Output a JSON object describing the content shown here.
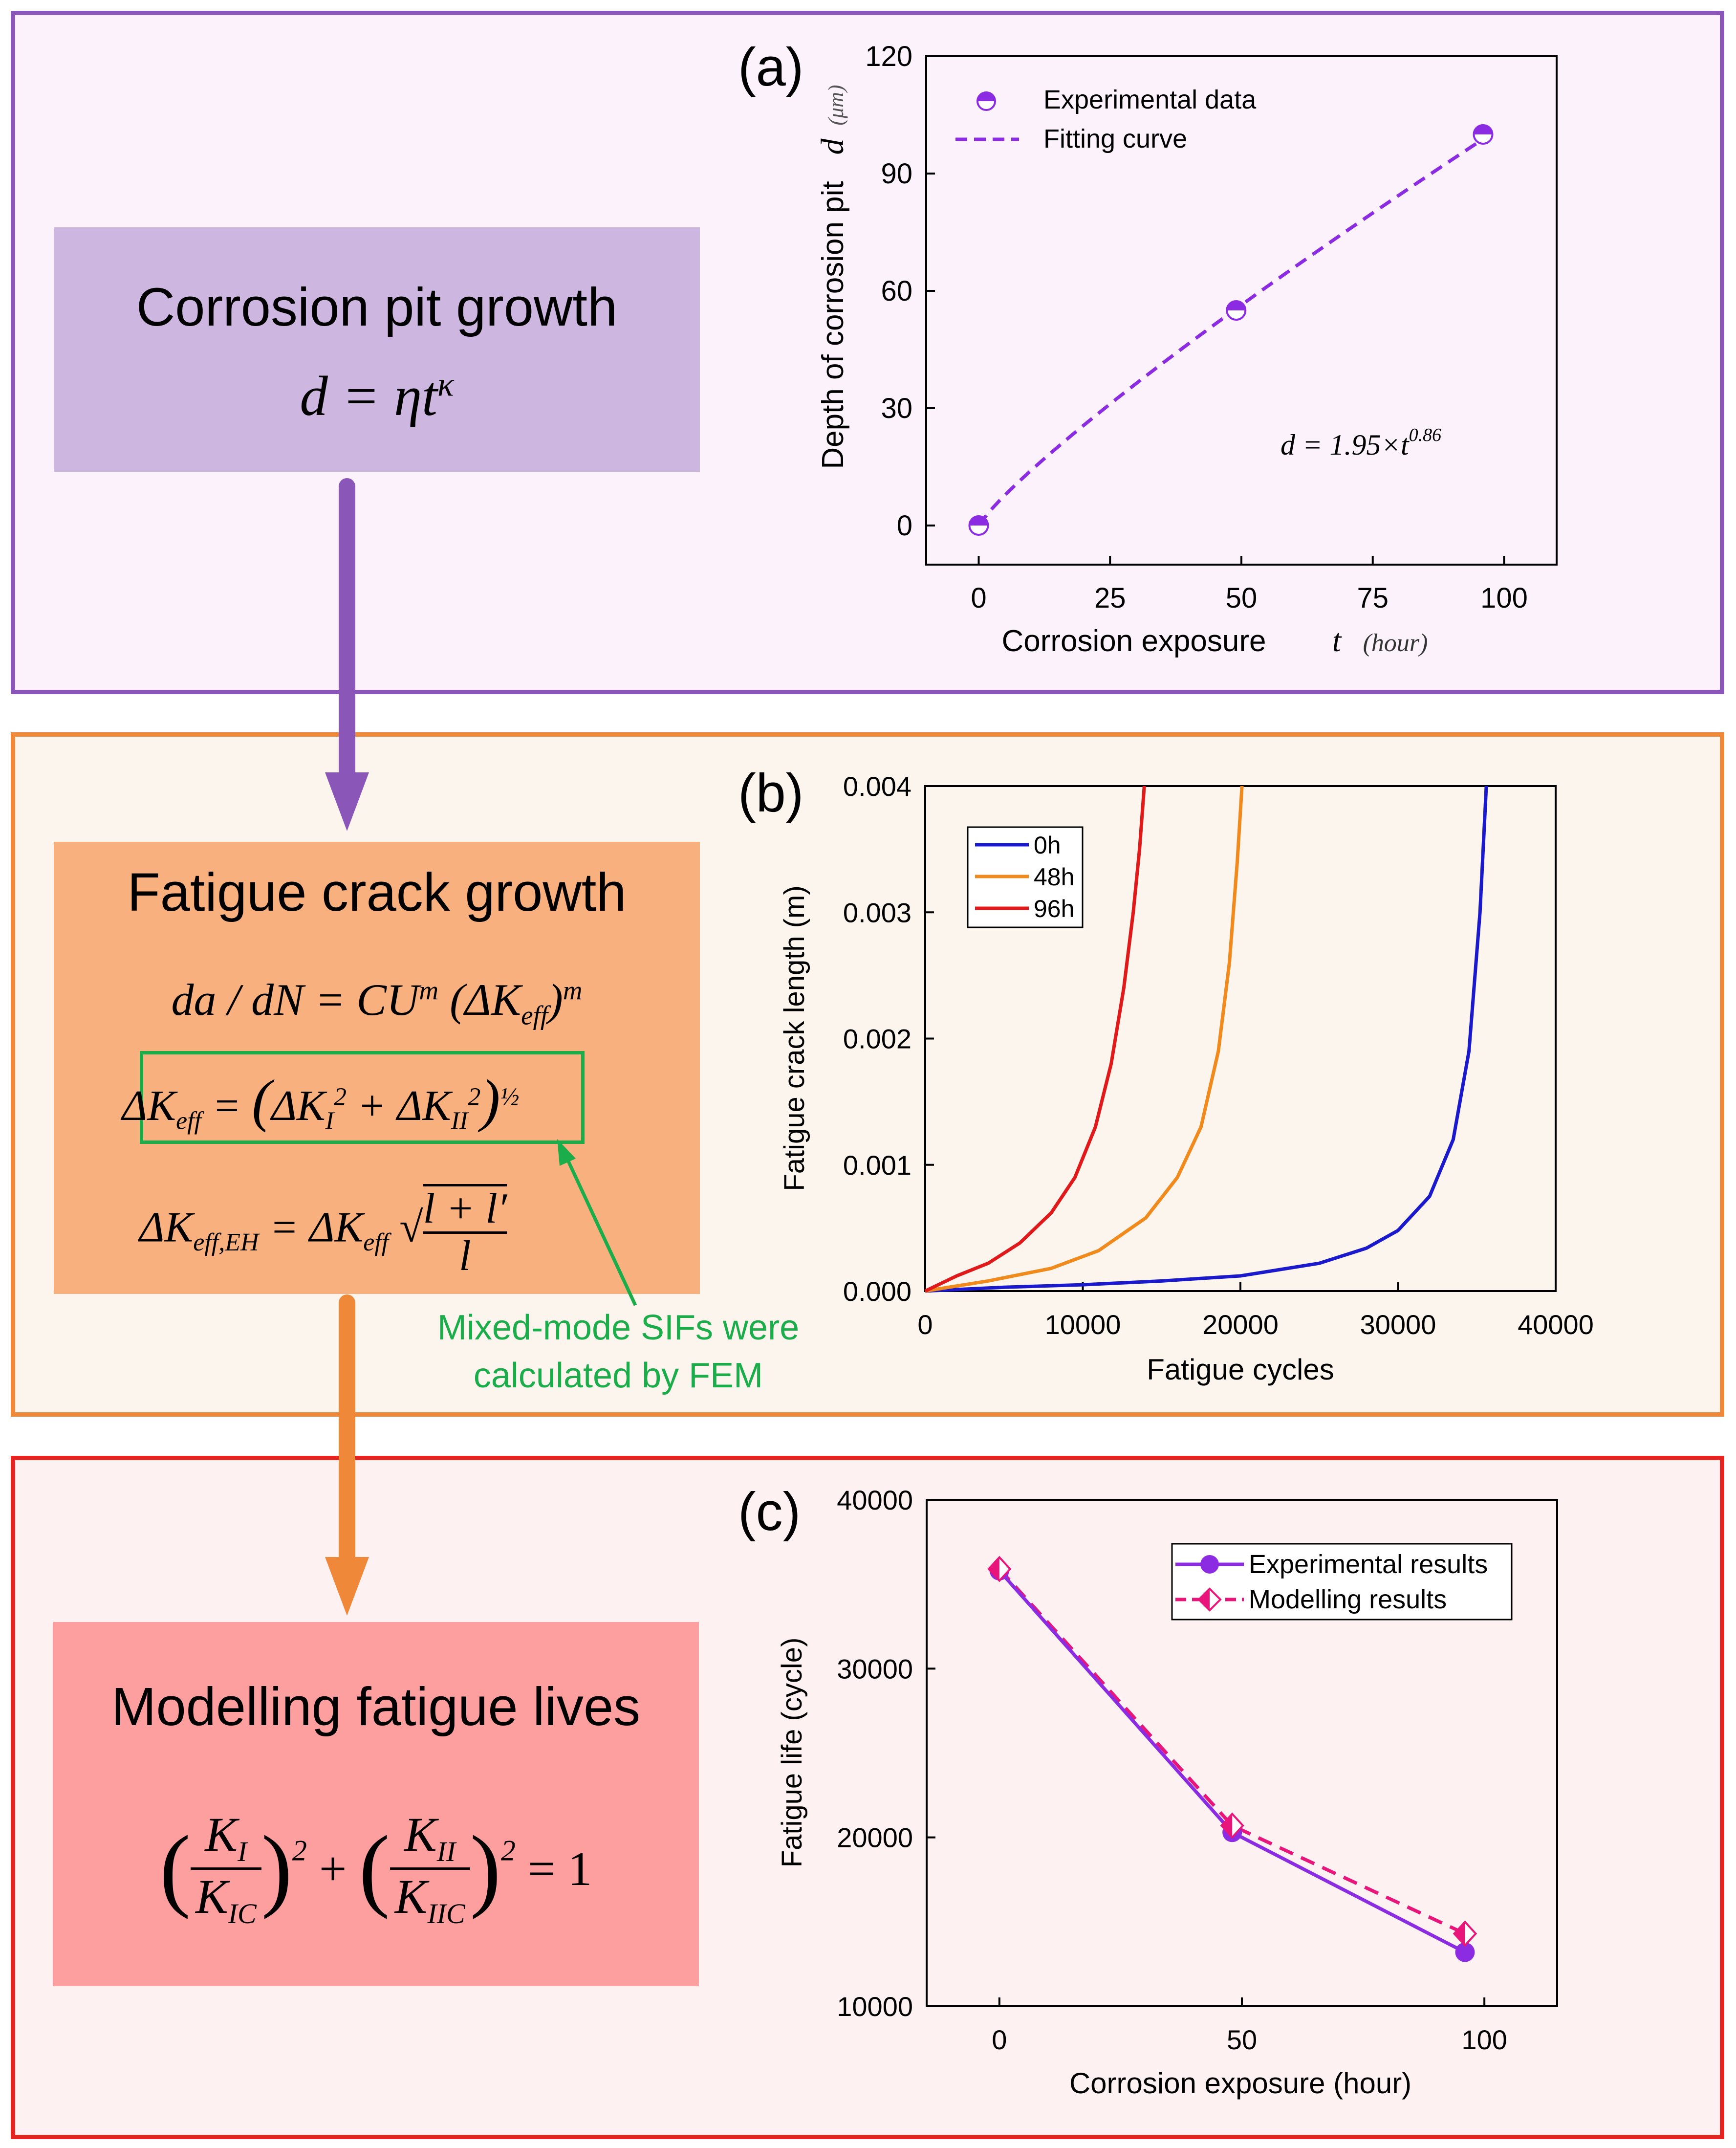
{
  "panels": {
    "a": {
      "box_title": "Corrosion pit growth",
      "box_equation": "d = ηt^κ",
      "label": "(a)"
    },
    "b": {
      "box_title": "Fatigue crack growth",
      "eq1": "da / dN = CU^m (ΔK_eff)^m",
      "eq2": "ΔK_eff = (ΔK_I² + ΔK_II²)^½",
      "eq3": "ΔK_eff,EH = ΔK_eff √((l + l′)/l)",
      "annotation_line1": "Mixed-mode SIFs were",
      "annotation_line2": "calculated by FEM",
      "label": "(b)"
    },
    "c": {
      "box_title": "Modelling fatigue lives",
      "box_equation": "(K_I/K_IC)² + (K_II/K_IIC)² = 1",
      "label": "(c)"
    }
  },
  "colors": {
    "purple": "#8a56b8",
    "orange": "#f0883a",
    "red": "#e32420",
    "series_purple": "#8b2be2",
    "series_pink": "#e8157a",
    "line_blue": "#1a1acc",
    "line_orange": "#f08a1d",
    "line_red": "#e01a1a",
    "annotation_green": "#1aad4a"
  },
  "chart_data": [
    {
      "id": "a",
      "type": "scatter",
      "xlabel": "Corrosion exposure",
      "xlabel_var": "t",
      "xlabel_unit": "(hour)",
      "ylabel": "Depth of corrosion pit",
      "ylabel_var": "d",
      "ylabel_unit": "(μm)",
      "xlim": [
        -10,
        110
      ],
      "ylim": [
        -10,
        120
      ],
      "xticks": [
        0,
        25,
        50,
        75,
        100
      ],
      "yticks": [
        0,
        30,
        60,
        90,
        120
      ],
      "legend": [
        "Experimental data",
        "Fitting curve"
      ],
      "legend_position": "top-left",
      "annotation": "d = 1.95×t^0.86",
      "series": [
        {
          "name": "Experimental data",
          "x": [
            0,
            49,
            96
          ],
          "y": [
            0,
            55,
            100
          ]
        },
        {
          "name": "Fitting curve",
          "x": [
            0,
            96
          ],
          "y": [
            0,
            100
          ],
          "style": "dashed"
        }
      ]
    },
    {
      "id": "b",
      "type": "line",
      "xlabel": "Fatigue cycles",
      "ylabel": "Fatigue crack length (m)",
      "xlim": [
        0,
        40000
      ],
      "ylim": [
        0,
        0.004
      ],
      "xticks": [
        0,
        10000,
        20000,
        30000,
        40000
      ],
      "yticks": [
        "0.000",
        "0.001",
        "0.002",
        "0.003",
        "0.004"
      ],
      "legend_position": "top-left",
      "series": [
        {
          "name": "0h",
          "x": [
            0,
            5000,
            10000,
            15000,
            20000,
            25000,
            28000,
            30000,
            32000,
            33500,
            34500,
            35200,
            35600
          ],
          "y": [
            0,
            3e-05,
            5e-05,
            8e-05,
            0.00012,
            0.00022,
            0.00034,
            0.00048,
            0.00075,
            0.0012,
            0.0019,
            0.003,
            0.004
          ]
        },
        {
          "name": "48h",
          "x": [
            0,
            4000,
            8000,
            11000,
            14000,
            16000,
            17500,
            18600,
            19300,
            19800,
            20100
          ],
          "y": [
            0,
            8e-05,
            0.00018,
            0.00032,
            0.00058,
            0.0009,
            0.0013,
            0.0019,
            0.0026,
            0.0034,
            0.004
          ]
        },
        {
          "name": "96h",
          "x": [
            0,
            2000,
            4000,
            6000,
            8000,
            9500,
            10800,
            11800,
            12600,
            13200,
            13600,
            13900
          ],
          "y": [
            0,
            0.00012,
            0.00022,
            0.00038,
            0.00062,
            0.0009,
            0.0013,
            0.0018,
            0.0024,
            0.003,
            0.0035,
            0.004
          ]
        }
      ]
    },
    {
      "id": "c",
      "type": "line",
      "xlabel": "Corrosion exposure (hour)",
      "ylabel": "Fatigue life (cycle)",
      "xlim": [
        -15,
        115
      ],
      "ylim": [
        10000,
        40000
      ],
      "xticks": [
        0,
        50,
        100
      ],
      "yticks": [
        10000,
        20000,
        30000,
        40000
      ],
      "legend_position": "top-right",
      "series": [
        {
          "name": "Experimental results",
          "x": [
            0,
            48,
            96
          ],
          "y": [
            35800,
            20300,
            13200
          ]
        },
        {
          "name": "Modelling results",
          "x": [
            0,
            48,
            96
          ],
          "y": [
            35900,
            20700,
            14300
          ]
        }
      ]
    }
  ]
}
